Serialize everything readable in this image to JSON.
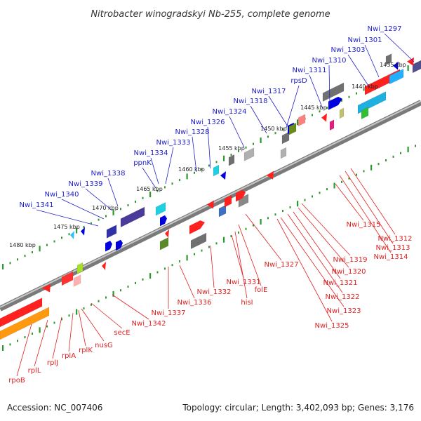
{
  "title": "Nitrobacter winogradskyi Nb-255, complete genome",
  "footer": {
    "accession": "Accession: NC_007406",
    "summary": "Topology: circular; Length: 3,402,093 bp; Genes: 3,176"
  },
  "colors": {
    "plus_label": "#1f1fcc",
    "minus_label": "#e02020",
    "backbone": "#8a8a8a",
    "tick": "#2a9a2a"
  },
  "kbp_labels": [
    "1435 kbp",
    "1440 kbp",
    "1445 kbp",
    "1450 kbp",
    "1455 kbp",
    "1460 kbp",
    "1465 kbp",
    "1470 kbp",
    "1475 kbp",
    "1480 kbp"
  ],
  "plus_genes": [
    "Nwi_1297",
    "Nwi_1301",
    "Nwi_1303",
    "Nwi_1310",
    "Nwi_1311",
    "rpsD",
    "Nwi_1317",
    "Nwi_1318",
    "Nwi_1324",
    "Nwi_1326",
    "Nwi_1328",
    "Nwi_1333",
    "Nwi_1334",
    "ppnK",
    "Nwi_1338",
    "Nwi_1339",
    "Nwi_1340",
    "Nwi_1341"
  ],
  "minus_genes": [
    "Nwi_1312",
    "Nwi_1313",
    "Nwi_1314",
    "Nwi_1315",
    "Nwi_1319",
    "Nwi_1320",
    "Nwi_1321",
    "Nwi_1322",
    "Nwi_1323",
    "Nwi_1325",
    "Nwi_1327",
    "folE",
    "hisI",
    "Nwi_1331",
    "Nwi_1332",
    "Nwi_1336",
    "Nwi_1337",
    "Nwi_1342",
    "secE",
    "nusG",
    "rplK",
    "rplA",
    "rplJ",
    "rplL",
    "rpoB"
  ]
}
